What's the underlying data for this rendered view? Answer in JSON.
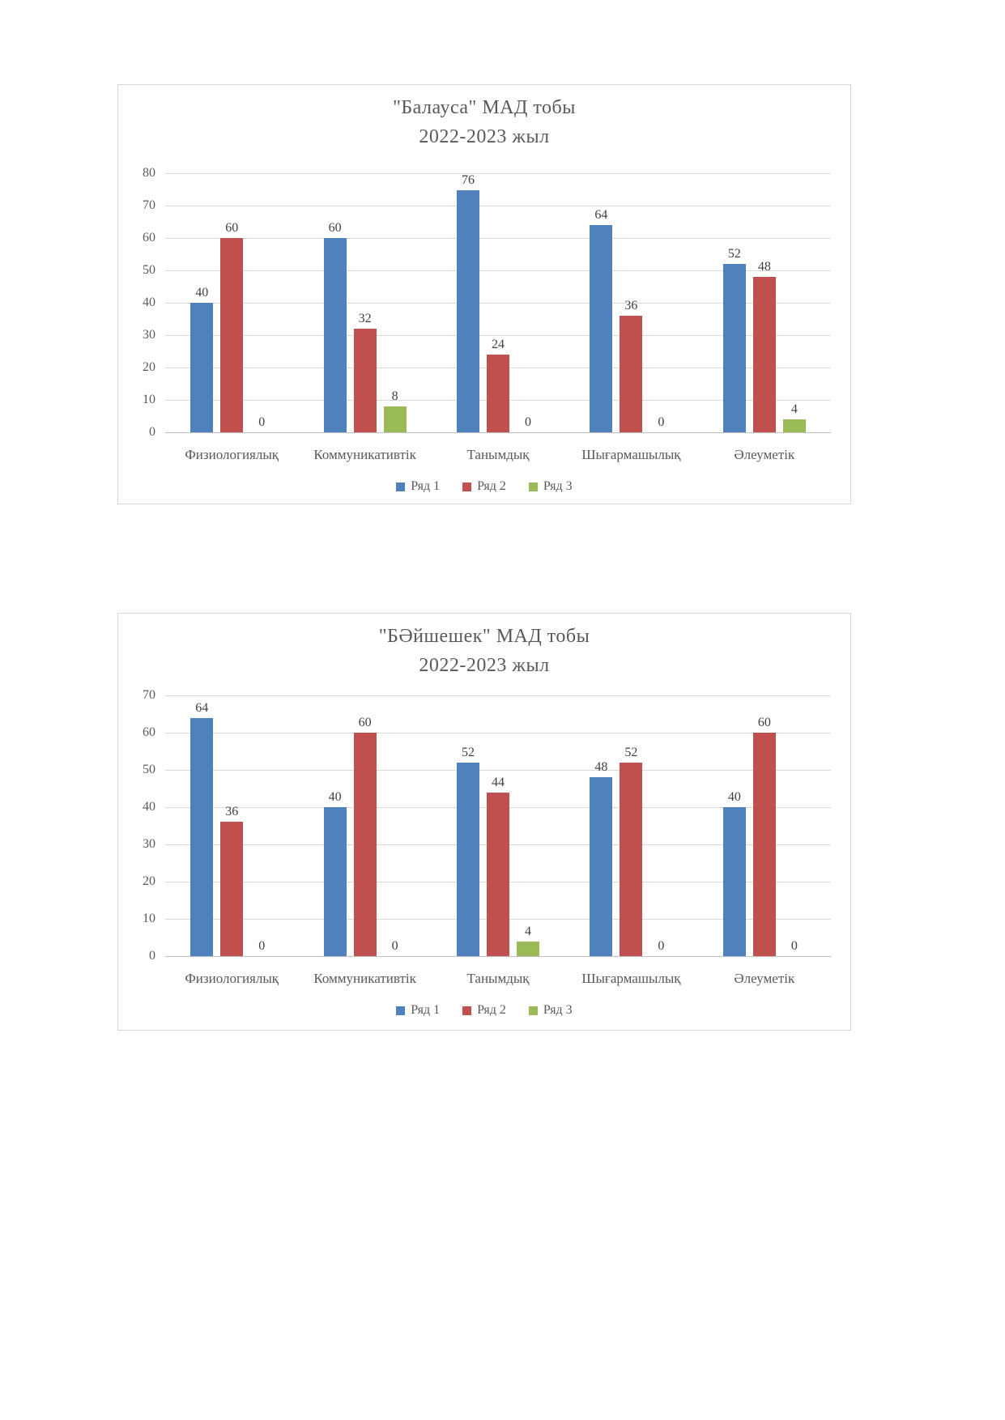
{
  "page_background": "#ffffff",
  "chart_data": [
    {
      "type": "bar",
      "title": "\"Балауса\" МАД тобы",
      "subtitle": "2022-2023 жыл",
      "categories": [
        "Физиологиялық",
        "Коммуникативтік",
        "Танымдық",
        "Шығармашылық",
        "Әлеуметік"
      ],
      "series": [
        {
          "name": "Ряд 1",
          "color": "#4F81BD",
          "values": [
            40,
            60,
            76,
            64,
            52
          ]
        },
        {
          "name": "Ряд 2",
          "color": "#C0504D",
          "values": [
            60,
            32,
            24,
            36,
            48
          ]
        },
        {
          "name": "Ряд 3",
          "color": "#9BBB59",
          "values": [
            0,
            8,
            0,
            0,
            4
          ]
        }
      ],
      "ylim": [
        0,
        80
      ],
      "ytick_step": 10,
      "yticks": [
        80,
        70,
        60,
        50,
        40,
        30,
        20,
        10,
        0
      ],
      "grid": true,
      "data_labels": true,
      "legend_position": "bottom",
      "gridline_color": "#D9D9D9",
      "axis_line_color": "#BFBFBF",
      "text_color": "#595959",
      "border_color": "#D7D7D7"
    },
    {
      "type": "bar",
      "title": "\"БӘйшешек\" МАД тобы",
      "subtitle": "2022-2023 жыл",
      "categories": [
        "Физиологиялық",
        "Коммуникативтік",
        "Танымдық",
        "Шығармашылық",
        "Әлеуметік"
      ],
      "series": [
        {
          "name": "Ряд 1",
          "color": "#4F81BD",
          "values": [
            64,
            40,
            52,
            48,
            40
          ]
        },
        {
          "name": "Ряд 2",
          "color": "#C0504D",
          "values": [
            36,
            60,
            44,
            52,
            60
          ]
        },
        {
          "name": "Ряд 3",
          "color": "#9BBB59",
          "values": [
            0,
            0,
            4,
            0,
            0
          ]
        }
      ],
      "ylim": [
        0,
        70
      ],
      "ytick_step": 10,
      "yticks": [
        70,
        60,
        50,
        40,
        30,
        20,
        10,
        0
      ],
      "grid": true,
      "data_labels": true,
      "legend_position": "bottom",
      "gridline_color": "#D9D9D9",
      "axis_line_color": "#BFBFBF",
      "text_color": "#595959",
      "border_color": "#D7D7D7"
    }
  ]
}
